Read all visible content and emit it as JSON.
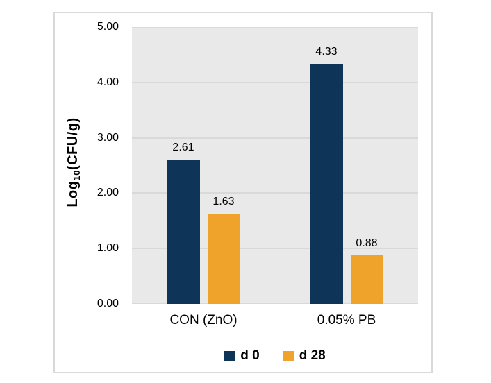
{
  "figure": {
    "background": "#FFFFFF",
    "border_color": "#D9D9D9"
  },
  "chart_data": {
    "type": "bar",
    "title": "",
    "categories": [
      "CON (ZnO)",
      "0.05% PB"
    ],
    "series": [
      {
        "name": "d 0",
        "color": "#0E3557",
        "values": [
          2.61,
          4.33
        ],
        "data_labels": [
          "2.61",
          "4.33"
        ]
      },
      {
        "name": "d 28",
        "color": "#F0A32B",
        "values": [
          1.63,
          0.88
        ],
        "data_labels": [
          "1.63",
          "0.88"
        ]
      }
    ],
    "ylabel": {
      "prefix": "Log",
      "subscript": "10",
      "suffix": "(CFU/g)"
    },
    "xlabel": "",
    "ylim": [
      0,
      5
    ],
    "yticks": [
      {
        "value": 0,
        "label": "0.00"
      },
      {
        "value": 1,
        "label": "1.00"
      },
      {
        "value": 2,
        "label": "2.00"
      },
      {
        "value": 3,
        "label": "3.00"
      },
      {
        "value": 4,
        "label": "4.00"
      },
      {
        "value": 5,
        "label": "5.00"
      }
    ],
    "grid": true,
    "legend_position": "bottom",
    "plot_background": "#E9E9E9",
    "gridline_color": "#D9D9D9"
  }
}
